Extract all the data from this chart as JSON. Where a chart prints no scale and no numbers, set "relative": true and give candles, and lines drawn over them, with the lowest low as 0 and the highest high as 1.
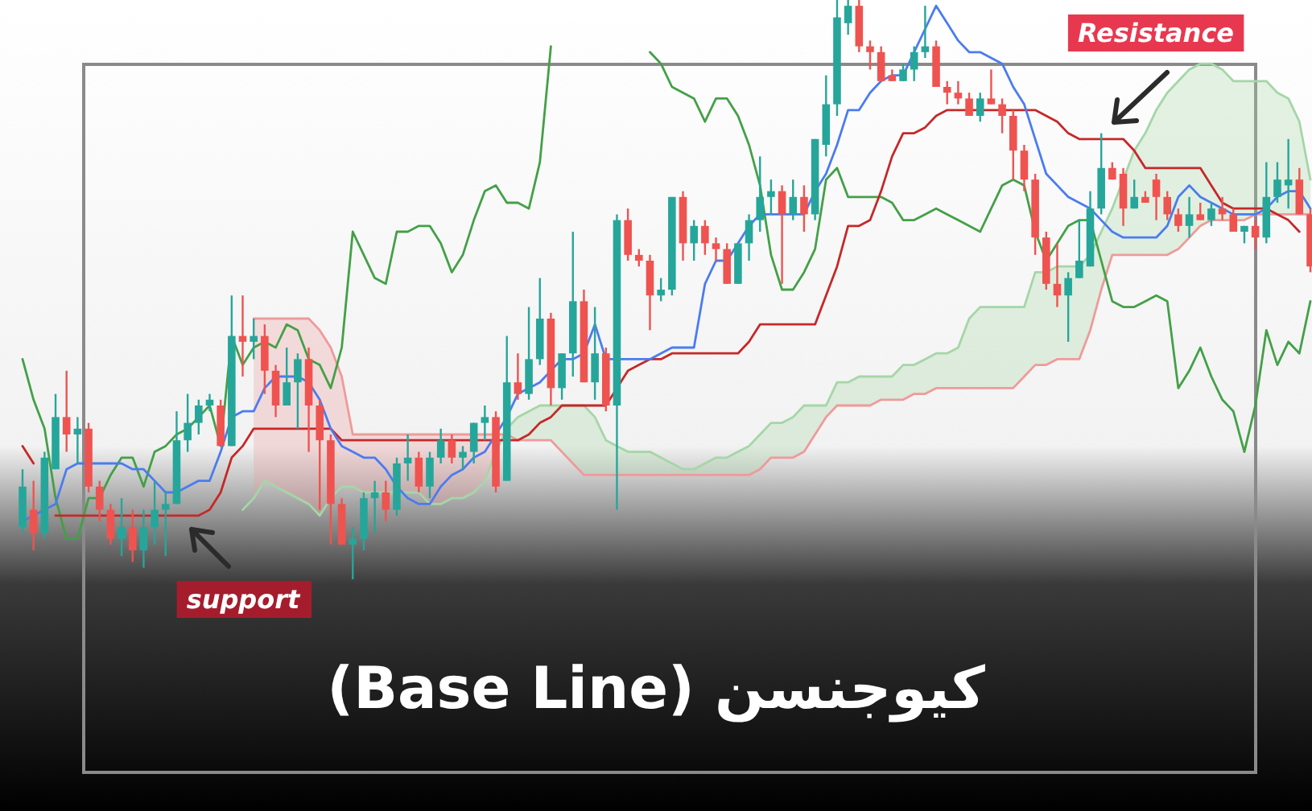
{
  "chart_data": {
    "type": "candlestick",
    "relative": true,
    "title": "کیوجنسن (Base Line)",
    "annotations": [
      "Resistance",
      "support"
    ],
    "categories": [
      null,
      null,
      null,
      null,
      null,
      null,
      null,
      null,
      null,
      null,
      null,
      null,
      null,
      null,
      null,
      null,
      null,
      null,
      null,
      null,
      null,
      null,
      null,
      null,
      null,
      null,
      null,
      null,
      null,
      null,
      null,
      null,
      null,
      null,
      null,
      null,
      null,
      null,
      null,
      null,
      null,
      null,
      null,
      null,
      null,
      null,
      null,
      null,
      null,
      null,
      null,
      null,
      null,
      null,
      null,
      null,
      null,
      null,
      null,
      null,
      null,
      null,
      null,
      null,
      null,
      null,
      null,
      null,
      null,
      null,
      null,
      null,
      null,
      null,
      null,
      null,
      null,
      null,
      null,
      null,
      null,
      null,
      null,
      null,
      null,
      null,
      null,
      null,
      null,
      null,
      null,
      null,
      null,
      null,
      null,
      null,
      null,
      null,
      null,
      null,
      null,
      null,
      null,
      null,
      null,
      null,
      null,
      null,
      null,
      null,
      null,
      null,
      null,
      null,
      null,
      null,
      null,
      null
    ],
    "ohlc": [
      [
        0.09,
        0.19,
        0.08,
        0.16
      ],
      [
        0.12,
        0.17,
        0.05,
        0.08
      ],
      [
        0.08,
        0.22,
        0.07,
        0.21
      ],
      [
        0.19,
        0.32,
        0.19,
        0.28
      ],
      [
        0.28,
        0.36,
        0.22,
        0.25
      ],
      [
        0.25,
        0.28,
        0.2,
        0.26
      ],
      [
        0.26,
        0.27,
        0.15,
        0.16
      ],
      [
        0.16,
        0.17,
        0.1,
        0.12
      ],
      [
        0.12,
        0.13,
        0.06,
        0.07
      ],
      [
        0.07,
        0.14,
        0.04,
        0.09
      ],
      [
        0.09,
        0.12,
        0.03,
        0.05
      ],
      [
        0.05,
        0.12,
        0.02,
        0.09
      ],
      [
        0.09,
        0.17,
        0.06,
        0.12
      ],
      [
        0.12,
        0.15,
        0.04,
        0.13
      ],
      [
        0.13,
        0.29,
        0.13,
        0.24
      ],
      [
        0.24,
        0.32,
        0.22,
        0.27
      ],
      [
        0.27,
        0.31,
        0.25,
        0.3
      ],
      [
        0.3,
        0.32,
        0.29,
        0.31
      ],
      [
        0.3,
        0.31,
        0.23,
        0.23
      ],
      [
        0.23,
        0.49,
        0.23,
        0.42
      ],
      [
        0.42,
        0.49,
        0.35,
        0.41
      ],
      [
        0.41,
        0.45,
        0.38,
        0.42
      ],
      [
        0.42,
        0.44,
        0.32,
        0.36
      ],
      [
        0.36,
        0.37,
        0.28,
        0.3
      ],
      [
        0.3,
        0.4,
        0.3,
        0.34
      ],
      [
        0.34,
        0.39,
        0.26,
        0.38
      ],
      [
        0.38,
        0.4,
        0.22,
        0.3
      ],
      [
        0.3,
        0.31,
        0.12,
        0.24
      ],
      [
        0.24,
        0.25,
        0.06,
        0.13
      ],
      [
        0.13,
        0.14,
        0.06,
        0.06
      ],
      [
        0.06,
        0.09,
        0,
        0.07
      ],
      [
        0.07,
        0.15,
        0.05,
        0.14
      ],
      [
        0.14,
        0.17,
        0.08,
        0.15
      ],
      [
        0.15,
        0.17,
        0.1,
        0.12
      ],
      [
        0.12,
        0.21,
        0.11,
        0.2
      ],
      [
        0.2,
        0.25,
        0.17,
        0.21
      ],
      [
        0.21,
        0.22,
        0.15,
        0.16
      ],
      [
        0.16,
        0.22,
        0.14,
        0.21
      ],
      [
        0.21,
        0.26,
        0.2,
        0.24
      ],
      [
        0.24,
        0.25,
        0.2,
        0.21
      ],
      [
        0.21,
        0.23,
        0.19,
        0.22
      ],
      [
        0.22,
        0.27,
        0.2,
        0.27
      ],
      [
        0.27,
        0.3,
        0.24,
        0.28
      ],
      [
        0.28,
        0.29,
        0.15,
        0.16
      ],
      [
        0.17,
        0.42,
        0.17,
        0.34
      ],
      [
        0.34,
        0.39,
        0.31,
        0.32
      ],
      [
        0.32,
        0.47,
        0.31,
        0.38
      ],
      [
        0.38,
        0.52,
        0.37,
        0.45
      ],
      [
        0.45,
        0.46,
        0.3,
        0.33
      ],
      [
        0.33,
        0.39,
        0.31,
        0.39
      ],
      [
        0.39,
        0.6,
        0.35,
        0.48
      ],
      [
        0.48,
        0.5,
        0.34,
        0.34
      ],
      [
        0.34,
        0.47,
        0.31,
        0.39
      ],
      [
        0.39,
        0.4,
        0.29,
        0.3
      ],
      [
        0.3,
        0.63,
        0.12,
        0.62
      ],
      [
        0.62,
        0.64,
        0.55,
        0.56
      ],
      [
        0.56,
        0.57,
        0.54,
        0.55
      ],
      [
        0.55,
        0.56,
        0.43,
        0.49
      ],
      [
        0.49,
        0.52,
        0.48,
        0.5
      ],
      [
        0.5,
        0.66,
        0.49,
        0.66
      ],
      [
        0.66,
        0.67,
        0.55,
        0.58
      ],
      [
        0.58,
        0.62,
        0.55,
        0.61
      ],
      [
        0.61,
        0.62,
        0.56,
        0.58
      ],
      [
        0.58,
        0.59,
        0.55,
        0.57
      ],
      [
        0.57,
        0.58,
        0.51,
        0.51
      ],
      [
        0.51,
        0.58,
        0.51,
        0.58
      ],
      [
        0.58,
        0.63,
        0.55,
        0.62
      ],
      [
        0.62,
        0.73,
        0.6,
        0.66
      ],
      [
        0.66,
        0.69,
        0.63,
        0.67
      ],
      [
        0.67,
        0.68,
        0.51,
        0.63
      ],
      [
        0.63,
        0.69,
        0.62,
        0.66
      ],
      [
        0.66,
        0.68,
        0.6,
        0.63
      ],
      [
        0.63,
        0.76,
        0.62,
        0.76
      ],
      [
        0.75,
        0.87,
        0.73,
        0.82
      ],
      [
        0.82,
        1,
        0.8,
        0.97
      ],
      [
        0.96,
        1,
        0.94,
        0.99
      ],
      [
        0.99,
        1,
        0.91,
        0.92
      ],
      [
        0.92,
        0.93,
        0.88,
        0.91
      ],
      [
        0.91,
        0.92,
        0.86,
        0.86
      ],
      [
        0.87,
        0.88,
        0.86,
        0.86
      ],
      [
        0.86,
        0.89,
        0.86,
        0.88
      ],
      [
        0.88,
        0.92,
        0.86,
        0.91
      ],
      [
        0.91,
        0.99,
        0.9,
        0.92
      ],
      [
        0.92,
        0.93,
        0.85,
        0.85
      ],
      [
        0.85,
        0.86,
        0.82,
        0.84
      ],
      [
        0.84,
        0.86,
        0.82,
        0.83
      ],
      [
        0.83,
        0.84,
        0.8,
        0.8
      ],
      [
        0.8,
        0.84,
        0.79,
        0.83
      ],
      [
        0.83,
        0.88,
        0.82,
        0.82
      ],
      [
        0.82,
        0.83,
        0.77,
        0.8
      ],
      [
        0.8,
        0.81,
        0.69,
        0.74
      ],
      [
        0.74,
        0.75,
        0.67,
        0.69
      ],
      [
        0.69,
        0.7,
        0.56,
        0.59
      ],
      [
        0.59,
        0.6,
        0.5,
        0.51
      ],
      [
        0.51,
        0.58,
        0.47,
        0.49
      ],
      [
        0.49,
        0.53,
        0.41,
        0.52
      ],
      [
        0.52,
        0.62,
        0.52,
        0.55
      ],
      [
        0.54,
        0.67,
        0.54,
        0.64
      ],
      [
        0.64,
        0.77,
        0.63,
        0.71
      ],
      [
        0.71,
        0.72,
        0.69,
        0.69
      ],
      [
        0.7,
        0.71,
        0.61,
        0.64
      ],
      [
        0.64,
        0.69,
        0.64,
        0.66
      ],
      [
        0.66,
        0.67,
        0.65,
        0.65
      ],
      [
        0.69,
        0.7,
        0.62,
        0.66
      ],
      [
        0.66,
        0.67,
        0.62,
        0.63
      ],
      [
        0.63,
        0.64,
        0.6,
        0.61
      ],
      [
        0.61,
        0.66,
        0.59,
        0.63
      ],
      [
        0.63,
        0.65,
        0.62,
        0.62
      ],
      [
        0.62,
        0.65,
        0.61,
        0.64
      ],
      [
        0.64,
        0.66,
        0.62,
        0.63
      ],
      [
        0.63,
        0.64,
        0.6,
        0.6
      ],
      [
        0.6,
        0.61,
        0.58,
        0.61
      ],
      [
        0.61,
        0.62,
        0.57,
        0.59
      ],
      [
        0.59,
        0.72,
        0.58,
        0.66
      ],
      [
        0.66,
        0.72,
        0.65,
        0.69
      ],
      [
        0.68,
        0.76,
        0.64,
        0.69
      ],
      [
        0.69,
        0.71,
        0.63,
        0.63
      ],
      [
        0.63,
        0.64,
        0.53,
        0.54
      ]
    ],
    "series": [
      {
        "type": "line",
        "color": "#a5d6a7",
        "values": [
          null,
          null,
          null,
          null,
          null,
          null,
          null,
          null,
          null,
          null,
          null,
          null,
          null,
          null,
          null,
          null,
          null,
          null,
          null,
          null,
          0.12,
          0.14,
          0.17,
          0.16,
          0.15,
          0.14,
          0.13,
          0.11,
          0.14,
          0.16,
          0.16,
          0.15,
          0.15,
          0.15,
          0.15,
          0.15,
          0.15,
          0.13,
          0.13,
          0.14,
          0.14,
          0.15,
          0.17,
          0.22,
          0.26,
          0.28,
          0.29,
          0.3,
          0.3,
          0.3,
          0.3,
          0.3,
          0.28,
          0.24,
          0.23,
          0.22,
          0.22,
          0.22,
          0.21,
          0.2,
          0.19,
          0.19,
          0.2,
          0.21,
          0.21,
          0.22,
          0.23,
          0.25,
          0.27,
          0.27,
          0.28,
          0.3,
          0.3,
          0.3,
          0.34,
          0.34,
          0.35,
          0.35,
          0.35,
          0.35,
          0.37,
          0.37,
          0.38,
          0.39,
          0.39,
          0.4,
          0.45,
          0.47,
          0.47,
          0.47,
          0.47,
          0.47,
          0.53,
          0.53,
          0.54,
          0.54,
          0.54,
          0.56,
          0.6,
          0.64,
          0.69,
          0.74,
          0.77,
          0.81,
          0.84,
          0.86,
          0.88,
          0.89,
          0.89,
          0.88,
          0.86,
          0.86,
          0.86,
          0.86,
          0.84,
          0.83,
          0.79,
          0.69
        ],
        "lower": [
          null,
          null,
          null,
          null,
          null,
          null,
          null,
          null,
          null,
          null,
          null,
          null,
          null,
          null,
          null,
          null,
          null,
          null,
          null,
          null,
          null,
          null,
          null,
          null,
          null,
          null,
          null,
          null,
          null,
          null,
          null,
          null,
          null,
          null,
          null,
          null,
          null,
          null,
          null,
          null,
          null,
          null,
          null,
          null,
          0.25,
          0.24,
          0.24,
          0.24,
          0.24,
          0.22,
          0.2,
          0.18,
          0.18,
          0.18,
          0.18,
          0.18,
          0.18,
          0.18,
          0.18,
          0.18,
          0.18,
          0.18,
          0.18,
          0.18,
          0.18,
          0.18,
          0.18,
          0.19,
          0.21,
          0.21,
          0.21,
          0.22,
          0.25,
          0.28,
          0.3,
          0.3,
          0.3,
          0.3,
          0.31,
          0.31,
          0.31,
          0.32,
          0.32,
          0.33,
          0.33,
          0.33,
          0.33,
          0.33,
          0.33,
          0.33,
          0.33,
          0.35,
          0.37,
          0.37,
          0.38,
          0.38,
          0.38,
          0.43,
          0.5,
          0.56,
          0.56,
          0.56,
          0.56,
          0.56,
          0.56,
          0.57,
          0.59,
          0.61,
          0.62,
          0.62,
          0.62,
          0.62,
          0.63,
          0.63,
          0.63,
          0.63,
          0.63,
          0.63
        ],
        "upper": [
          null,
          null,
          null,
          null,
          null,
          null,
          null,
          null,
          null,
          null,
          null,
          null,
          null,
          null,
          null,
          null,
          null,
          null,
          null,
          null,
          null,
          null,
          null,
          null,
          null,
          null,
          null,
          null,
          null,
          null,
          null,
          null,
          null,
          null,
          null,
          null,
          null,
          null,
          null,
          null,
          null,
          null,
          null,
          null,
          0.26,
          0.28,
          0.29,
          0.3,
          0.3,
          0.3,
          0.3,
          0.3,
          0.28,
          0.24,
          0.23,
          0.22,
          0.22,
          0.22,
          0.21,
          0.2,
          0.19,
          0.19,
          0.2,
          0.21,
          0.21,
          0.22,
          0.23,
          0.25,
          0.27,
          0.27,
          0.28,
          0.3,
          0.3,
          0.3,
          0.34,
          0.34,
          0.35,
          0.35,
          0.35,
          0.35,
          0.37,
          0.37,
          0.38,
          0.39,
          0.39,
          0.4,
          0.45,
          0.47,
          0.47,
          0.47,
          0.47,
          0.47,
          0.53,
          0.53,
          0.54,
          0.54,
          0.54,
          0.56,
          0.6,
          0.64,
          0.69,
          0.74,
          0.77,
          0.81,
          0.84,
          0.86,
          0.88,
          0.89,
          0.89,
          0.88,
          0.86,
          0.86,
          0.86,
          0.86,
          0.84,
          0.83,
          0.79,
          0.69
        ]
      },
      {
        "type": "line",
        "color": "#ef9a9a",
        "values": [
          null,
          null,
          null,
          null,
          null,
          null,
          null,
          null,
          null,
          null,
          null,
          null,
          null,
          null,
          null,
          null,
          null,
          null,
          null,
          null,
          null,
          0.45,
          0.45,
          0.45,
          0.45,
          0.45,
          0.45,
          0.43,
          0.4,
          0.35,
          0.25,
          0.25,
          0.25,
          0.25,
          0.25,
          0.25,
          0.25,
          0.25,
          0.25,
          0.25,
          0.25,
          0.25,
          0.25,
          0.25,
          0.25,
          0.24,
          0.24,
          0.24,
          0.24,
          0.22,
          0.2,
          0.18,
          0.18,
          0.18,
          0.18,
          0.18,
          0.18,
          0.18,
          0.18,
          0.18,
          0.18,
          0.18,
          0.18,
          0.18,
          0.18,
          0.18,
          0.18,
          0.19,
          0.21,
          0.21,
          0.21,
          0.22,
          0.25,
          0.28,
          0.3,
          0.3,
          0.3,
          0.3,
          0.31,
          0.31,
          0.31,
          0.32,
          0.32,
          0.33,
          0.33,
          0.33,
          0.33,
          0.33,
          0.33,
          0.33,
          0.33,
          0.35,
          0.37,
          0.37,
          0.38,
          0.38,
          0.38,
          0.43,
          0.5,
          0.56,
          0.56,
          0.56,
          0.56,
          0.56,
          0.56,
          0.57,
          0.59,
          0.61,
          0.62,
          0.62,
          0.62,
          0.62,
          0.63,
          0.63,
          0.63,
          0.63,
          0.63,
          0.63
        ],
        "lower": [
          null,
          null,
          null,
          null,
          null,
          null,
          null,
          null,
          null,
          null,
          null,
          null,
          null,
          null,
          null,
          null,
          null,
          null,
          null,
          null,
          null,
          0.14,
          0.17,
          0.16,
          0.15,
          0.14,
          0.13,
          0.11,
          0.14,
          0.16,
          0.16,
          0.15,
          0.15,
          0.15,
          0.15,
          0.15,
          0.15,
          0.13,
          0.13,
          0.14,
          0.14,
          0.15,
          0.17,
          0.22,
          null,
          null,
          null,
          null,
          null,
          null,
          null,
          null,
          null,
          null,
          null,
          null,
          null,
          null,
          null,
          null,
          null,
          null,
          null,
          null,
          null,
          null,
          null,
          null,
          null,
          null,
          null,
          null,
          null,
          null,
          null,
          null,
          null,
          null,
          null,
          null,
          null,
          null,
          null,
          null,
          null,
          null,
          null,
          null,
          null,
          null,
          null,
          null,
          null,
          null,
          null,
          null,
          null,
          null,
          null,
          null,
          null,
          null,
          null,
          null,
          null,
          null,
          null,
          null,
          null,
          null,
          null,
          null,
          null,
          null,
          null,
          null,
          null,
          null
        ],
        "upper": [
          null,
          null,
          null,
          null,
          null,
          null,
          null,
          null,
          null,
          null,
          null,
          null,
          null,
          null,
          null,
          null,
          null,
          null,
          null,
          null,
          null,
          0.45,
          0.45,
          0.45,
          0.45,
          0.45,
          0.45,
          0.43,
          0.4,
          0.35,
          0.25,
          0.25,
          0.25,
          0.25,
          0.25,
          0.25,
          0.25,
          0.25,
          0.25,
          0.25,
          0.25,
          0.25,
          0.25,
          0.25,
          null,
          null,
          null,
          null,
          null,
          null,
          null,
          null,
          null,
          null,
          null,
          null,
          null,
          null,
          null,
          null,
          null,
          null,
          null,
          null,
          null,
          null,
          null,
          null,
          null,
          null,
          null,
          null,
          null,
          null,
          null,
          null,
          null,
          null,
          null,
          null,
          null,
          null,
          null,
          null,
          null,
          null,
          null,
          null,
          null,
          null,
          null,
          null,
          null,
          null,
          null,
          null,
          null,
          null,
          null,
          null,
          null,
          null,
          null,
          null,
          null,
          null,
          null,
          null,
          null,
          null,
          null,
          null,
          null,
          null,
          null,
          null,
          null,
          null
        ]
      },
      {
        "type": "line",
        "color": "#43a047",
        "values": [
          0.38,
          0.31,
          0.26,
          0.14,
          0.07,
          0.07,
          0.14,
          0.14,
          0.18,
          0.21,
          0.21,
          0.16,
          0.22,
          0.23,
          0.25,
          0.26,
          0.28,
          0.3,
          0.23,
          0.42,
          0.37,
          0.4,
          0.41,
          0.4,
          0.44,
          0.43,
          0.38,
          0.37,
          0.33,
          0.4,
          0.6,
          0.56,
          0.52,
          0.51,
          0.6,
          0.6,
          0.61,
          0.61,
          0.58,
          0.53,
          0.56,
          0.62,
          0.67,
          0.68,
          0.65,
          0.65,
          0.64,
          0.72,
          0.92,
          null,
          null,
          null,
          null,
          null,
          null,
          null,
          null,
          0.91,
          0.89,
          0.85,
          0.84,
          0.83,
          0.79,
          0.83,
          0.83,
          0.8,
          0.75,
          0.68,
          0.56,
          0.5,
          0.5,
          0.53,
          0.57,
          0.69,
          0.71,
          0.66,
          0.66,
          0.66,
          0.66,
          0.65,
          0.62,
          0.62,
          0.63,
          0.64,
          0.63,
          0.62,
          0.61,
          0.6,
          0.64,
          0.68,
          0.69,
          0.68,
          0.6,
          0.55,
          0.58,
          0.61,
          0.62,
          0.62,
          0.55,
          0.48,
          0.47,
          0.47,
          0.48,
          0.49,
          0.48,
          0.33,
          0.36,
          0.4,
          0.35,
          0.31,
          0.29,
          0.22,
          0.3,
          0.43,
          0.37,
          0.41,
          0.39,
          0.48
        ]
      },
      {
        "type": "line",
        "color": "#c62828",
        "values": [
          0.23,
          0.2,
          null,
          0.11,
          0.11,
          0.11,
          0.11,
          0.11,
          0.11,
          0.11,
          0.11,
          0.11,
          0.11,
          0.11,
          0.11,
          0.11,
          0.11,
          0.12,
          0.15,
          0.21,
          0.23,
          0.26,
          0.26,
          0.26,
          0.26,
          0.26,
          0.26,
          0.26,
          0.26,
          0.24,
          0.24,
          0.24,
          0.24,
          0.24,
          0.24,
          0.24,
          0.24,
          0.24,
          0.24,
          0.24,
          0.24,
          0.24,
          0.24,
          0.24,
          0.24,
          0.24,
          0.25,
          0.27,
          0.28,
          0.3,
          0.3,
          0.3,
          0.3,
          0.3,
          0.33,
          0.36,
          0.37,
          0.38,
          0.38,
          0.39,
          0.39,
          0.39,
          0.39,
          0.39,
          0.39,
          0.39,
          0.41,
          0.44,
          0.44,
          0.44,
          0.44,
          0.44,
          0.44,
          0.49,
          0.54,
          0.61,
          0.61,
          0.62,
          0.67,
          0.73,
          0.77,
          0.77,
          0.78,
          0.8,
          0.81,
          0.81,
          0.81,
          0.81,
          0.81,
          0.81,
          0.81,
          0.81,
          0.81,
          0.8,
          0.79,
          0.77,
          0.76,
          0.76,
          0.76,
          0.76,
          0.76,
          0.74,
          0.71,
          0.71,
          0.71,
          0.71,
          0.71,
          0.71,
          0.68,
          0.65,
          0.64,
          0.64,
          0.64,
          0.64,
          0.63,
          0.62,
          0.6,
          null
        ]
      },
      {
        "type": "line",
        "color": "#4a7cf0",
        "values": [
          0.1,
          0.11,
          0.12,
          0.13,
          0.19,
          0.2,
          0.2,
          0.2,
          0.2,
          0.2,
          0.19,
          0.19,
          0.17,
          0.15,
          0.15,
          0.16,
          0.17,
          0.17,
          0.22,
          0.28,
          0.29,
          0.29,
          0.33,
          0.35,
          0.35,
          0.35,
          0.34,
          0.31,
          0.26,
          0.23,
          0.22,
          0.21,
          0.21,
          0.19,
          0.16,
          0.14,
          0.13,
          0.13,
          0.16,
          0.18,
          0.19,
          0.21,
          0.22,
          0.25,
          0.28,
          0.32,
          0.33,
          0.34,
          0.36,
          0.38,
          0.38,
          0.39,
          0.44,
          0.38,
          0.38,
          0.38,
          0.38,
          0.38,
          0.39,
          0.4,
          0.4,
          0.4,
          0.51,
          0.55,
          0.55,
          0.58,
          0.61,
          0.63,
          0.63,
          0.63,
          0.63,
          0.63,
          0.67,
          0.7,
          0.75,
          0.81,
          0.81,
          0.84,
          0.86,
          0.87,
          0.87,
          0.91,
          0.95,
          0.99,
          0.96,
          0.93,
          0.91,
          0.91,
          0.9,
          0.89,
          0.85,
          0.82,
          0.76,
          0.7,
          0.68,
          0.66,
          0.65,
          0.64,
          0.62,
          0.6,
          0.59,
          0.59,
          0.59,
          0.59,
          0.61,
          0.66,
          0.68,
          0.66,
          0.65,
          0.64,
          0.63,
          0.63,
          0.63,
          0.64,
          0.66,
          0.67,
          0.67,
          0.64
        ]
      }
    ]
  }
}
